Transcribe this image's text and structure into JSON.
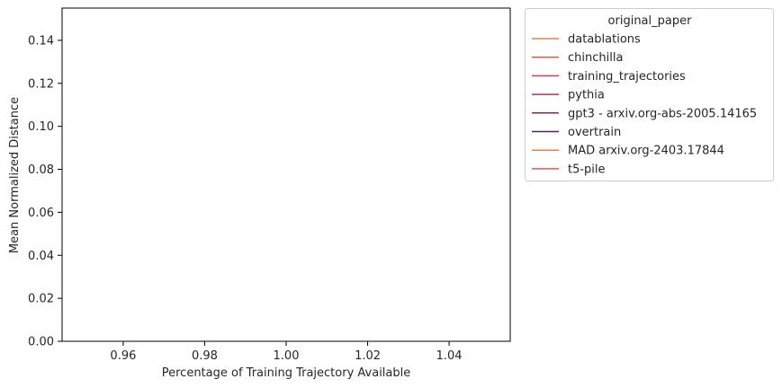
{
  "chart_data": {
    "type": "line",
    "title": "",
    "xlabel": "Percentage of Training Trajectory Available",
    "ylabel": "Mean Normalized Distance",
    "xlim": [
      0.945,
      1.055
    ],
    "ylim": [
      0.0,
      0.155
    ],
    "xticks": [
      0.96,
      0.98,
      1.0,
      1.02,
      1.04
    ],
    "xtick_labels": [
      "0.96",
      "0.98",
      "1.00",
      "1.02",
      "1.04"
    ],
    "yticks": [
      0.0,
      0.02,
      0.04,
      0.06,
      0.08,
      0.1,
      0.12,
      0.14
    ],
    "ytick_labels": [
      "0.00",
      "0.02",
      "0.04",
      "0.06",
      "0.08",
      "0.10",
      "0.12",
      "0.14"
    ],
    "grid": false,
    "legend": {
      "title": "original_paper",
      "placement": "outside-right",
      "entries": [
        {
          "name": "datablations",
          "color": "#f07c56"
        },
        {
          "name": "chinchilla",
          "color": "#e8574e"
        },
        {
          "name": "training_trajectories",
          "color": "#d23d5c"
        },
        {
          "name": "pythia",
          "color": "#b02d67"
        },
        {
          "name": "gpt3 - arxiv.org-abs-2005.14165",
          "color": "#86216c"
        },
        {
          "name": "overtrain",
          "color": "#5e1a63"
        },
        {
          "name": "MAD arxiv.org-2403.17844",
          "color": "#f07c56"
        },
        {
          "name": "t5-pile",
          "color": "#e8574e"
        }
      ]
    },
    "series": []
  }
}
